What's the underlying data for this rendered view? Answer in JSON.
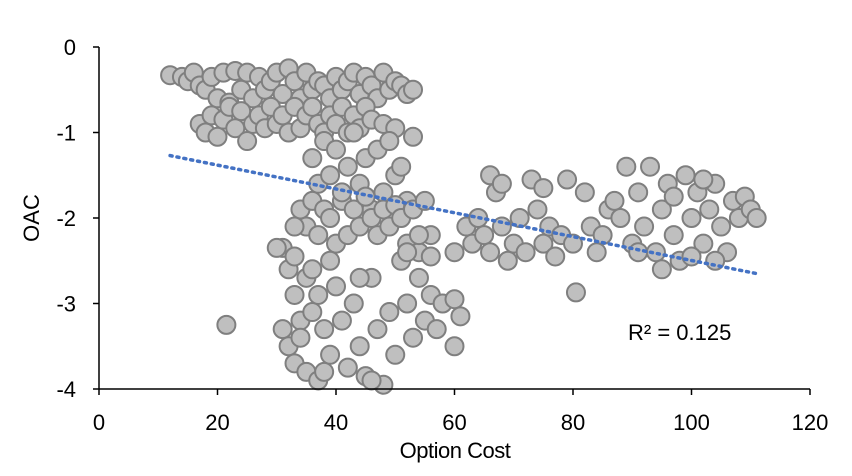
{
  "chart_data": {
    "type": "scatter",
    "title": "",
    "xlabel": "Option Cost",
    "ylabel": "OAC",
    "xlim": [
      0,
      120
    ],
    "ylim": [
      -4,
      0
    ],
    "xticks": [
      "0",
      "20",
      "40",
      "60",
      "80",
      "100",
      "120"
    ],
    "yticks": [
      "0",
      "-1",
      "-2",
      "-3",
      "-4"
    ],
    "grid": false,
    "marker_fill": "#bfbfbf",
    "marker_stroke": "#7f7f7f",
    "trendline": {
      "type": "linear",
      "color": "#4472c4",
      "style": "dotted",
      "x": [
        12,
        111
      ],
      "y": [
        -1.27,
        -2.65
      ]
    },
    "annotation": "R² = 0.125",
    "points": [
      [
        12,
        -0.33
      ],
      [
        14,
        -0.35
      ],
      [
        15,
        -0.4
      ],
      [
        16,
        -0.3
      ],
      [
        17,
        -0.45
      ],
      [
        18,
        -0.5
      ],
      [
        19,
        -0.35
      ],
      [
        20,
        -0.6
      ],
      [
        21,
        -0.3
      ],
      [
        22,
        -0.65
      ],
      [
        23,
        -0.28
      ],
      [
        24,
        -0.5
      ],
      [
        25,
        -0.3
      ],
      [
        26,
        -0.6
      ],
      [
        27,
        -0.35
      ],
      [
        28,
        -0.5
      ],
      [
        29,
        -0.4
      ],
      [
        30,
        -0.3
      ],
      [
        31,
        -0.55
      ],
      [
        32,
        -0.25
      ],
      [
        33,
        -0.4
      ],
      [
        34,
        -0.6
      ],
      [
        35,
        -0.3
      ],
      [
        36,
        -0.5
      ],
      [
        37,
        -0.4
      ],
      [
        38,
        -0.45
      ],
      [
        39,
        -0.6
      ],
      [
        40,
        -0.35
      ],
      [
        41,
        -0.5
      ],
      [
        42,
        -0.4
      ],
      [
        43,
        -0.3
      ],
      [
        44,
        -0.55
      ],
      [
        45,
        -0.35
      ],
      [
        46,
        -0.45
      ],
      [
        47,
        -0.6
      ],
      [
        48,
        -0.3
      ],
      [
        49,
        -0.5
      ],
      [
        50,
        -0.4
      ],
      [
        51,
        -0.45
      ],
      [
        52,
        -0.55
      ],
      [
        53,
        -0.5
      ],
      [
        17,
        -0.9
      ],
      [
        18,
        -1.0
      ],
      [
        19,
        -0.8
      ],
      [
        20,
        -1.05
      ],
      [
        21,
        -0.85
      ],
      [
        22,
        -0.7
      ],
      [
        23,
        -0.95
      ],
      [
        24,
        -0.75
      ],
      [
        25,
        -1.1
      ],
      [
        26,
        -0.9
      ],
      [
        27,
        -0.8
      ],
      [
        28,
        -0.95
      ],
      [
        29,
        -0.7
      ],
      [
        30,
        -0.9
      ],
      [
        31,
        -0.8
      ],
      [
        32,
        -1.0
      ],
      [
        33,
        -0.7
      ],
      [
        34,
        -0.95
      ],
      [
        35,
        -0.8
      ],
      [
        36,
        -0.7
      ],
      [
        37,
        -0.9
      ],
      [
        38,
        -1.0
      ],
      [
        39,
        -0.8
      ],
      [
        40,
        -0.9
      ],
      [
        41,
        -0.7
      ],
      [
        42,
        -1.0
      ],
      [
        43,
        -0.8
      ],
      [
        44,
        -0.95
      ],
      [
        45,
        -0.7
      ],
      [
        46,
        -0.85
      ],
      [
        48,
        -0.9
      ],
      [
        50,
        -0.95
      ],
      [
        53,
        -1.05
      ],
      [
        36,
        -1.3
      ],
      [
        37,
        -1.6
      ],
      [
        38,
        -1.1
      ],
      [
        39,
        -1.5
      ],
      [
        40,
        -1.2
      ],
      [
        41,
        -1.8
      ],
      [
        42,
        -1.4
      ],
      [
        43,
        -1.0
      ],
      [
        44,
        -1.6
      ],
      [
        45,
        -1.3
      ],
      [
        46,
        -1.9
      ],
      [
        47,
        -1.2
      ],
      [
        48,
        -1.7
      ],
      [
        49,
        -1.1
      ],
      [
        50,
        -1.5
      ],
      [
        51,
        -1.4
      ],
      [
        52,
        -1.8
      ],
      [
        34,
        -1.9
      ],
      [
        35,
        -2.1
      ],
      [
        36,
        -1.8
      ],
      [
        37,
        -2.2
      ],
      [
        38,
        -1.9
      ],
      [
        39,
        -2.0
      ],
      [
        40,
        -2.3
      ],
      [
        41,
        -1.7
      ],
      [
        42,
        -2.2
      ],
      [
        43,
        -1.9
      ],
      [
        44,
        -2.1
      ],
      [
        45,
        -1.75
      ],
      [
        46,
        -2.0
      ],
      [
        47,
        -2.2
      ],
      [
        48,
        -1.9
      ],
      [
        49,
        -2.1
      ],
      [
        50,
        -1.85
      ],
      [
        51,
        -2.0
      ],
      [
        52,
        -2.3
      ],
      [
        53,
        -1.9
      ],
      [
        55,
        -1.8
      ],
      [
        56,
        -2.2
      ],
      [
        33,
        -2.1
      ],
      [
        54,
        -2.4
      ],
      [
        31,
        -2.35
      ],
      [
        32,
        -2.6
      ],
      [
        33,
        -2.9
      ],
      [
        34,
        -3.2
      ],
      [
        35,
        -2.7
      ],
      [
        31,
        -3.3
      ],
      [
        32,
        -3.5
      ],
      [
        33,
        -3.7
      ],
      [
        34,
        -3.4
      ],
      [
        35,
        -3.8
      ],
      [
        36,
        -3.1
      ],
      [
        37,
        -3.9
      ],
      [
        36,
        -2.6
      ],
      [
        37,
        -2.9
      ],
      [
        38,
        -3.3
      ],
      [
        39,
        -3.6
      ],
      [
        40,
        -2.8
      ],
      [
        41,
        -3.2
      ],
      [
        42,
        -3.75
      ],
      [
        43,
        -3.0
      ],
      [
        44,
        -3.5
      ],
      [
        45,
        -3.85
      ],
      [
        46,
        -2.7
      ],
      [
        47,
        -3.3
      ],
      [
        48,
        -3.95
      ],
      [
        49,
        -3.1
      ],
      [
        50,
        -3.6
      ],
      [
        51,
        -2.5
      ],
      [
        52,
        -3.0
      ],
      [
        53,
        -3.4
      ],
      [
        54,
        -2.7
      ],
      [
        55,
        -3.2
      ],
      [
        56,
        -2.9
      ],
      [
        57,
        -3.3
      ],
      [
        58,
        -3.0
      ],
      [
        60,
        -2.95
      ],
      [
        61,
        -3.15
      ],
      [
        60,
        -3.5
      ],
      [
        52,
        -2.4
      ],
      [
        54,
        -2.2
      ],
      [
        56,
        -2.45
      ],
      [
        39,
        -2.5
      ],
      [
        44,
        -2.7
      ],
      [
        38,
        -3.8
      ],
      [
        46,
        -3.9
      ],
      [
        30,
        -2.35
      ],
      [
        33,
        -2.45
      ],
      [
        60,
        -2.4
      ],
      [
        62,
        -2.1
      ],
      [
        63,
        -2.3
      ],
      [
        64,
        -2.0
      ],
      [
        65,
        -2.2
      ],
      [
        66,
        -1.5
      ],
      [
        67,
        -1.7
      ],
      [
        66,
        -2.4
      ],
      [
        68,
        -2.1
      ],
      [
        68,
        -1.6
      ],
      [
        69,
        -2.5
      ],
      [
        70,
        -2.3
      ],
      [
        71,
        -2.0
      ],
      [
        72,
        -2.4
      ],
      [
        73,
        -1.55
      ],
      [
        74,
        -1.9
      ],
      [
        75,
        -1.65
      ],
      [
        75,
        -2.3
      ],
      [
        76,
        -2.1
      ],
      [
        77,
        -2.45
      ],
      [
        78,
        -2.2
      ],
      [
        79,
        -1.55
      ],
      [
        80,
        -2.3
      ],
      [
        80.5,
        -2.87
      ],
      [
        82,
        -1.7
      ],
      [
        83,
        -2.1
      ],
      [
        84,
        -2.4
      ],
      [
        86,
        -1.9
      ],
      [
        85,
        -2.2
      ],
      [
        87,
        -1.8
      ],
      [
        88,
        -2.0
      ],
      [
        89,
        -1.4
      ],
      [
        90,
        -2.3
      ],
      [
        91,
        -1.7
      ],
      [
        92,
        -2.1
      ],
      [
        93,
        -1.4
      ],
      [
        94,
        -2.4
      ],
      [
        95,
        -1.9
      ],
      [
        96,
        -1.6
      ],
      [
        97,
        -2.2
      ],
      [
        98,
        -2.5
      ],
      [
        99,
        -1.5
      ],
      [
        100,
        -2.0
      ],
      [
        101,
        -1.7
      ],
      [
        102,
        -2.3
      ],
      [
        103,
        -1.9
      ],
      [
        104,
        -1.6
      ],
      [
        105,
        -2.1
      ],
      [
        106,
        -2.4
      ],
      [
        107,
        -1.8
      ],
      [
        108,
        -2.0
      ],
      [
        109,
        -1.75
      ],
      [
        110,
        -1.9
      ],
      [
        111,
        -2.0
      ],
      [
        95,
        -2.6
      ],
      [
        100,
        -2.45
      ],
      [
        104,
        -2.5
      ],
      [
        91,
        -2.4
      ],
      [
        97,
        -1.75
      ],
      [
        102,
        -1.55
      ],
      [
        21.5,
        -3.25
      ]
    ]
  }
}
